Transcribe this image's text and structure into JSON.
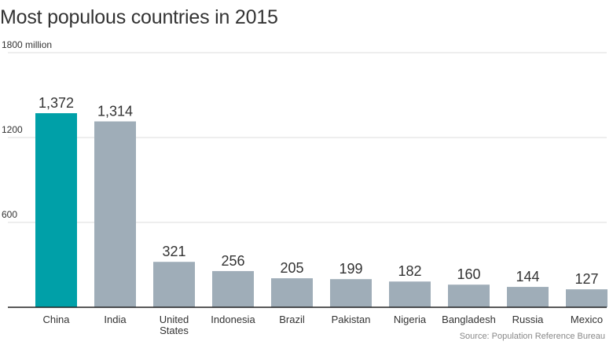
{
  "colors": {
    "highlight": "#00a0a8",
    "bar": "#9fadb8",
    "grid": "#dddddd",
    "axis": "#222222",
    "text": "#333333",
    "source_text": "#888888"
  },
  "chart_data": {
    "type": "bar",
    "title": "Most populous countries in 2015",
    "categories": [
      "China",
      "India",
      "United States",
      "Indonesia",
      "Brazil",
      "Pakistan",
      "Nigeria",
      "Bangladesh",
      "Russia",
      "Mexico"
    ],
    "category_lines": [
      [
        "China"
      ],
      [
        "India"
      ],
      [
        "United",
        "States"
      ],
      [
        "Indonesia"
      ],
      [
        "Brazil"
      ],
      [
        "Pakistan"
      ],
      [
        "Nigeria"
      ],
      [
        "Bangladesh"
      ],
      [
        "Russia"
      ],
      [
        "Mexico"
      ]
    ],
    "values": [
      1372,
      1314,
      321,
      256,
      205,
      199,
      182,
      160,
      144,
      127
    ],
    "value_labels": [
      "1,372",
      "1,314",
      "321",
      "256",
      "205",
      "199",
      "182",
      "160",
      "144",
      "127"
    ],
    "highlight_index": 0,
    "ylim": [
      0,
      1800
    ],
    "yticks": [
      600,
      1200,
      1800
    ],
    "ytick_labels": [
      "600",
      "1200",
      "1800 million"
    ],
    "grid": true,
    "xlabel": "",
    "ylabel": ""
  },
  "source": "Source: Population Reference Bureau"
}
